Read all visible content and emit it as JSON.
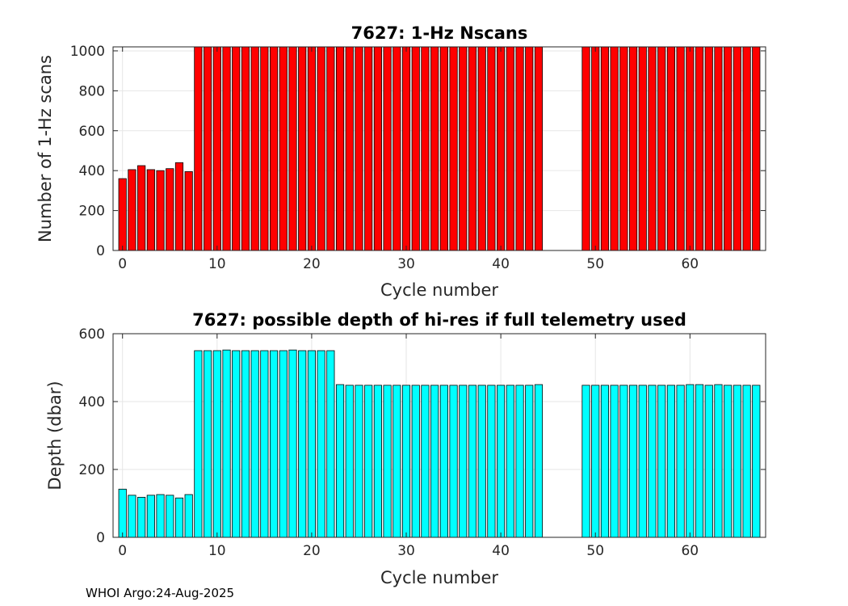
{
  "chart_data": [
    {
      "type": "bar",
      "title": "7627: 1-Hz Nscans",
      "xlabel": "Cycle number",
      "ylabel": "Number of 1-Hz scans",
      "xlim": [
        -1,
        68
      ],
      "ylim": [
        0,
        1020
      ],
      "xticks": [
        0,
        10,
        20,
        30,
        40,
        50,
        60
      ],
      "yticks": [
        0,
        200,
        400,
        600,
        800,
        1000
      ],
      "grid": true,
      "bar_color": "#ff0000",
      "x": [
        0,
        1,
        2,
        3,
        4,
        5,
        6,
        7,
        8,
        9,
        10,
        11,
        12,
        13,
        14,
        15,
        16,
        17,
        18,
        19,
        20,
        21,
        22,
        23,
        24,
        25,
        26,
        27,
        28,
        29,
        30,
        31,
        32,
        33,
        34,
        35,
        36,
        37,
        38,
        39,
        40,
        41,
        42,
        43,
        44,
        49,
        50,
        51,
        52,
        53,
        54,
        55,
        56,
        57,
        58,
        59,
        60,
        61,
        62,
        63,
        64,
        65,
        66,
        67
      ],
      "values": [
        360,
        405,
        425,
        405,
        400,
        410,
        440,
        395,
        1020,
        1020,
        1020,
        1020,
        1020,
        1020,
        1020,
        1020,
        1020,
        1020,
        1020,
        1020,
        1020,
        1020,
        1020,
        1020,
        1020,
        1020,
        1020,
        1020,
        1020,
        1020,
        1020,
        1020,
        1020,
        1020,
        1020,
        1020,
        1020,
        1020,
        1020,
        1020,
        1020,
        1020,
        1020,
        1020,
        1020,
        1020,
        1020,
        1020,
        1020,
        1020,
        1020,
        1020,
        1020,
        1020,
        1020,
        1020,
        1020,
        1020,
        1020,
        1020,
        1020,
        1020,
        1020,
        1020
      ]
    },
    {
      "type": "bar",
      "title": "7627: possible depth of hi-res if full telemetry used",
      "xlabel": "Cycle number",
      "ylabel": "Depth (dbar)",
      "xlim": [
        -1,
        68
      ],
      "ylim": [
        0,
        600
      ],
      "xticks": [
        0,
        10,
        20,
        30,
        40,
        50,
        60
      ],
      "yticks": [
        0,
        200,
        400,
        600
      ],
      "grid": true,
      "bar_color": "#00ffff",
      "x": [
        0,
        1,
        2,
        3,
        4,
        5,
        6,
        7,
        8,
        9,
        10,
        11,
        12,
        13,
        14,
        15,
        16,
        17,
        18,
        19,
        20,
        21,
        22,
        23,
        24,
        25,
        26,
        27,
        28,
        29,
        30,
        31,
        32,
        33,
        34,
        35,
        36,
        37,
        38,
        39,
        40,
        41,
        42,
        43,
        44,
        49,
        50,
        51,
        52,
        53,
        54,
        55,
        56,
        57,
        58,
        59,
        60,
        61,
        62,
        63,
        64,
        65,
        66,
        67
      ],
      "values": [
        142,
        124,
        118,
        124,
        126,
        124,
        116,
        126,
        550,
        550,
        550,
        552,
        550,
        550,
        550,
        550,
        550,
        550,
        552,
        550,
        550,
        550,
        550,
        450,
        448,
        448,
        448,
        448,
        448,
        448,
        448,
        448,
        448,
        448,
        448,
        448,
        448,
        448,
        448,
        448,
        448,
        448,
        448,
        448,
        450,
        448,
        448,
        448,
        448,
        448,
        448,
        448,
        448,
        448,
        448,
        448,
        450,
        450,
        448,
        450,
        448,
        448,
        448,
        448
      ]
    }
  ],
  "footer": "WHOI Argo:24-Aug-2025"
}
